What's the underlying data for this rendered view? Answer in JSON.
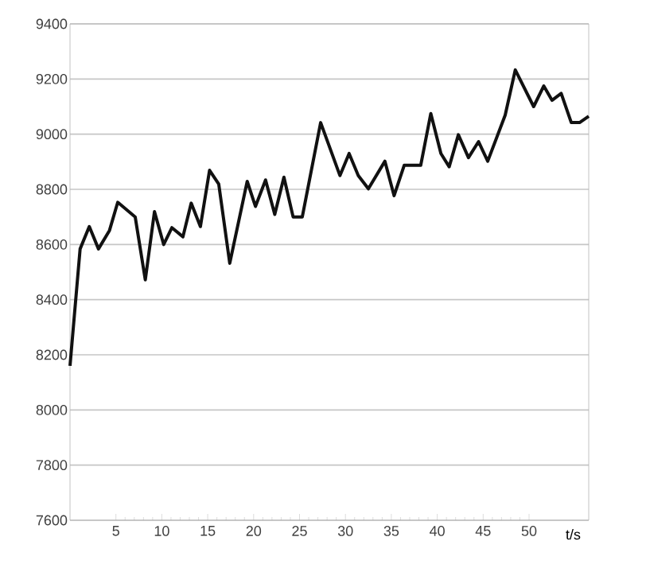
{
  "chart_data": {
    "type": "line",
    "xlabel": "t/s",
    "x": [
      0,
      1.1,
      2.1,
      3.1,
      4.3,
      5.2,
      7.1,
      8.2,
      9.2,
      10.2,
      11.1,
      12.3,
      13.2,
      14.2,
      15.2,
      16.2,
      17.4,
      19.3,
      20.2,
      21.3,
      22.3,
      23.3,
      24.3,
      25.3,
      27.3,
      29.4,
      30.4,
      31.4,
      32.5,
      34.3,
      35.3,
      36.4,
      38.2,
      39.3,
      40.4,
      41.3,
      42.3,
      43.4,
      44.5,
      45.5,
      47.4,
      48.5,
      50.5,
      51.6,
      52.5,
      53.5,
      54.6,
      55.5,
      56.5
    ],
    "series": [
      {
        "color": "#111111",
        "values": [
          8160,
          8584,
          8665,
          8584,
          8651,
          8753,
          8700,
          8472,
          8719,
          8600,
          8661,
          8628,
          8750,
          8665,
          8869,
          8819,
          8532,
          8829,
          8738,
          8834,
          8709,
          8844,
          8700,
          8700,
          9042,
          8850,
          8930,
          8850,
          8802,
          8902,
          8777,
          8887,
          8887,
          9075,
          8930,
          8882,
          8998,
          8915,
          8973,
          8902,
          9069,
          9233,
          9100,
          9175,
          9123,
          9148,
          9042,
          9042,
          9065
        ]
      }
    ],
    "xlim": [
      0,
      56.5
    ],
    "ylim": [
      7600,
      9400
    ],
    "xticks": [
      5,
      10,
      15,
      20,
      25,
      30,
      35,
      40,
      45,
      50
    ],
    "yticks": [
      7600,
      7800,
      8000,
      8200,
      8400,
      8600,
      8800,
      9000,
      9200,
      9400
    ],
    "grid": "y",
    "marker": "none",
    "line_style": "solid"
  }
}
